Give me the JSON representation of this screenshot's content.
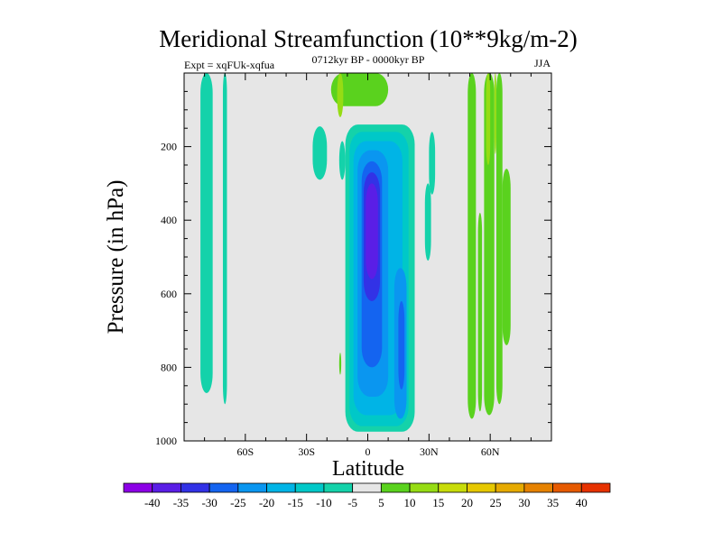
{
  "chart_data": {
    "type": "contour",
    "title": "Meridional Streamfunction (10**9kg/m-2)",
    "subtitle_left": "Expt = xqFUk-xqfua",
    "subtitle_center": "0712kyr BP - 0000kyr BP",
    "subtitle_right": "JJA",
    "xlabel": "Latitude",
    "ylabel": "Pressure (in hPa)",
    "xlim": [
      -90,
      90
    ],
    "ylim": [
      0,
      1000
    ],
    "y_inverted": true,
    "x_ticks": [
      {
        "value": -60,
        "label": "60S"
      },
      {
        "value": -30,
        "label": "30S"
      },
      {
        "value": 0,
        "label": "0"
      },
      {
        "value": 30,
        "label": "30N"
      },
      {
        "value": 60,
        "label": "60N"
      }
    ],
    "y_ticks": [
      {
        "value": 200,
        "label": "200"
      },
      {
        "value": 400,
        "label": "400"
      },
      {
        "value": 600,
        "label": "600"
      },
      {
        "value": 800,
        "label": "800"
      },
      {
        "value": 1000,
        "label": "1000"
      }
    ],
    "background_color": "#e6e6e6",
    "colorbar": {
      "levels": [
        "-40",
        "-35",
        "-30",
        "-25",
        "-20",
        "-15",
        "-10",
        "-5",
        "5",
        "10",
        "15",
        "20",
        "25",
        "30",
        "35",
        "40"
      ],
      "colors": [
        "#8c00e6",
        "#5a1ee6",
        "#3232e6",
        "#1464f0",
        "#0a96f0",
        "#00b4e6",
        "#00c8c8",
        "#14d2aa",
        "#e6e6e6",
        "#5ad21e",
        "#96dc14",
        "#c8dc0a",
        "#e6c800",
        "#e6aa00",
        "#e68200",
        "#e65a00",
        "#e63200"
      ]
    },
    "regions": [
      {
        "lat": [
          -82,
          -76
        ],
        "p": [
          0,
          870
        ],
        "value": -7.5
      },
      {
        "lat": [
          -71,
          -69
        ],
        "p": [
          0,
          900
        ],
        "value": -7.5
      },
      {
        "lat": [
          -27,
          -20
        ],
        "p": [
          145,
          290
        ],
        "value": -7.5
      },
      {
        "lat": [
          -14,
          -11
        ],
        "p": [
          185,
          290
        ],
        "value": -7.5
      },
      {
        "lat": [
          -18,
          10
        ],
        "p": [
          0,
          90
        ],
        "value": 7.5
      },
      {
        "lat": [
          -15,
          -12
        ],
        "p": [
          0,
          120
        ],
        "value": 12.5
      },
      {
        "lat": [
          -11,
          23
        ],
        "p": [
          140,
          975
        ],
        "value": -7.5
      },
      {
        "lat": [
          -9,
          20
        ],
        "p": [
          160,
          960
        ],
        "value": -12.5
      },
      {
        "lat": [
          -7,
          17
        ],
        "p": [
          185,
          930
        ],
        "value": -17.5
      },
      {
        "lat": [
          -5,
          10
        ],
        "p": [
          210,
          880
        ],
        "value": -22.5
      },
      {
        "lat": [
          13,
          19
        ],
        "p": [
          530,
          940
        ],
        "value": -22.5
      },
      {
        "lat": [
          -3,
          7
        ],
        "p": [
          240,
          800
        ],
        "value": -27.5
      },
      {
        "lat": [
          15,
          18
        ],
        "p": [
          620,
          860
        ],
        "value": -27.5
      },
      {
        "lat": [
          -2,
          6
        ],
        "p": [
          270,
          620
        ],
        "value": -32.5
      },
      {
        "lat": [
          -1,
          5
        ],
        "p": [
          300,
          560
        ],
        "value": -37.5
      },
      {
        "lat": [
          30,
          33
        ],
        "p": [
          160,
          330
        ],
        "value": -7.5
      },
      {
        "lat": [
          28,
          31
        ],
        "p": [
          300,
          510
        ],
        "value": -7.5
      },
      {
        "lat": [
          -14,
          -13
        ],
        "p": [
          760,
          820
        ],
        "value": 7.5
      },
      {
        "lat": [
          49,
          53
        ],
        "p": [
          0,
          940
        ],
        "value": 7.5
      },
      {
        "lat": [
          57,
          62
        ],
        "p": [
          0,
          930
        ],
        "value": 7.5
      },
      {
        "lat": [
          63,
          66
        ],
        "p": [
          0,
          900
        ],
        "value": 7.5
      },
      {
        "lat": [
          54,
          56
        ],
        "p": [
          380,
          920
        ],
        "value": 7.5
      },
      {
        "lat": [
          66,
          70
        ],
        "p": [
          260,
          740
        ],
        "value": 7.5
      },
      {
        "lat": [
          58,
          60
        ],
        "p": [
          0,
          250
        ],
        "value": 12.5
      },
      {
        "lat": [
          62,
          63
        ],
        "p": [
          0,
          220
        ],
        "value": 12.5
      }
    ]
  }
}
